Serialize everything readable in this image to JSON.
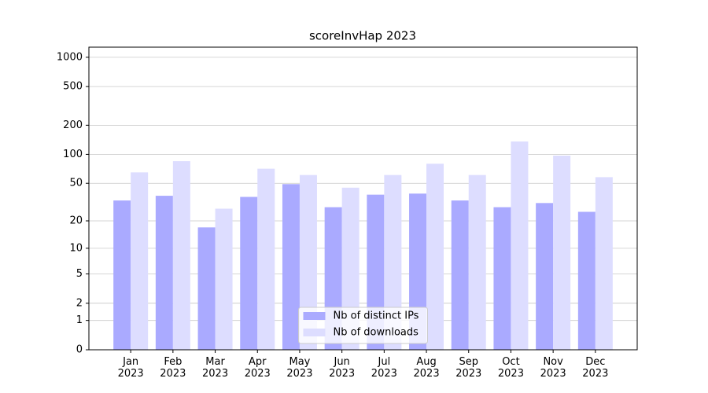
{
  "chart_data": {
    "type": "bar",
    "title": "scoreInvHap 2023",
    "categories": [
      "Jan\n2023",
      "Feb\n2023",
      "Mar\n2023",
      "Apr\n2023",
      "May\n2023",
      "Jun\n2023",
      "Jul\n2023",
      "Aug\n2023",
      "Sep\n2023",
      "Oct\n2023",
      "Nov\n2023",
      "Dec\n2023"
    ],
    "series": [
      {
        "name": "Nb of distinct IPs",
        "color": "#aaaaff",
        "values": [
          33,
          37,
          17,
          36,
          49,
          28,
          38,
          39,
          33,
          28,
          31,
          25
        ]
      },
      {
        "name": "Nb of downloads",
        "color": "#ddddff",
        "values": [
          65,
          85,
          27,
          71,
          61,
          45,
          61,
          80,
          61,
          136,
          97,
          58
        ]
      }
    ],
    "y_scale": "symlog",
    "ylim": [
      0,
      1270
    ],
    "yticks": [
      0,
      1,
      2,
      5,
      10,
      20,
      50,
      100,
      200,
      500,
      1000
    ],
    "grid": true,
    "legend": "lower center"
  }
}
